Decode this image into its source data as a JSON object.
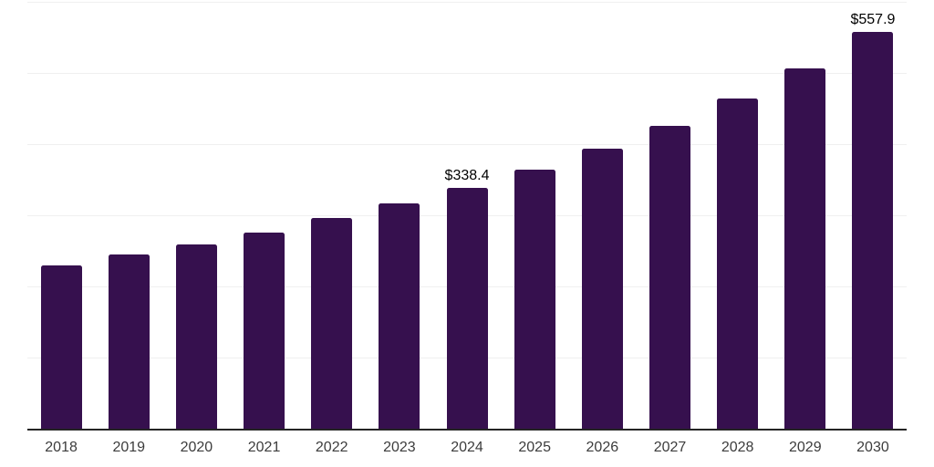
{
  "chart_data": {
    "type": "bar",
    "title": "",
    "xlabel": "",
    "ylabel": "",
    "categories": [
      "2018",
      "2019",
      "2020",
      "2021",
      "2022",
      "2023",
      "2024",
      "2025",
      "2026",
      "2027",
      "2028",
      "2029",
      "2030"
    ],
    "values": [
      229.9,
      244.7,
      258.8,
      275.3,
      295.7,
      316.2,
      338.4,
      364.7,
      393.5,
      425.5,
      463.7,
      507.0,
      557.9
    ],
    "data_labels": [
      {
        "category": "2024",
        "text": "$338.4"
      },
      {
        "category": "2030",
        "text": "$557.9"
      }
    ],
    "ylim": [
      0,
      600
    ],
    "gridline_step": 100,
    "grid": true,
    "y_tick_labels_visible": false,
    "legend": false,
    "colors": {
      "bar": "#36104e",
      "axis_line": "#242424",
      "gridline": "#f0f0f0",
      "x_tick_label": "#3c3c3c",
      "data_label": "#000000",
      "background": "#ffffff"
    }
  }
}
